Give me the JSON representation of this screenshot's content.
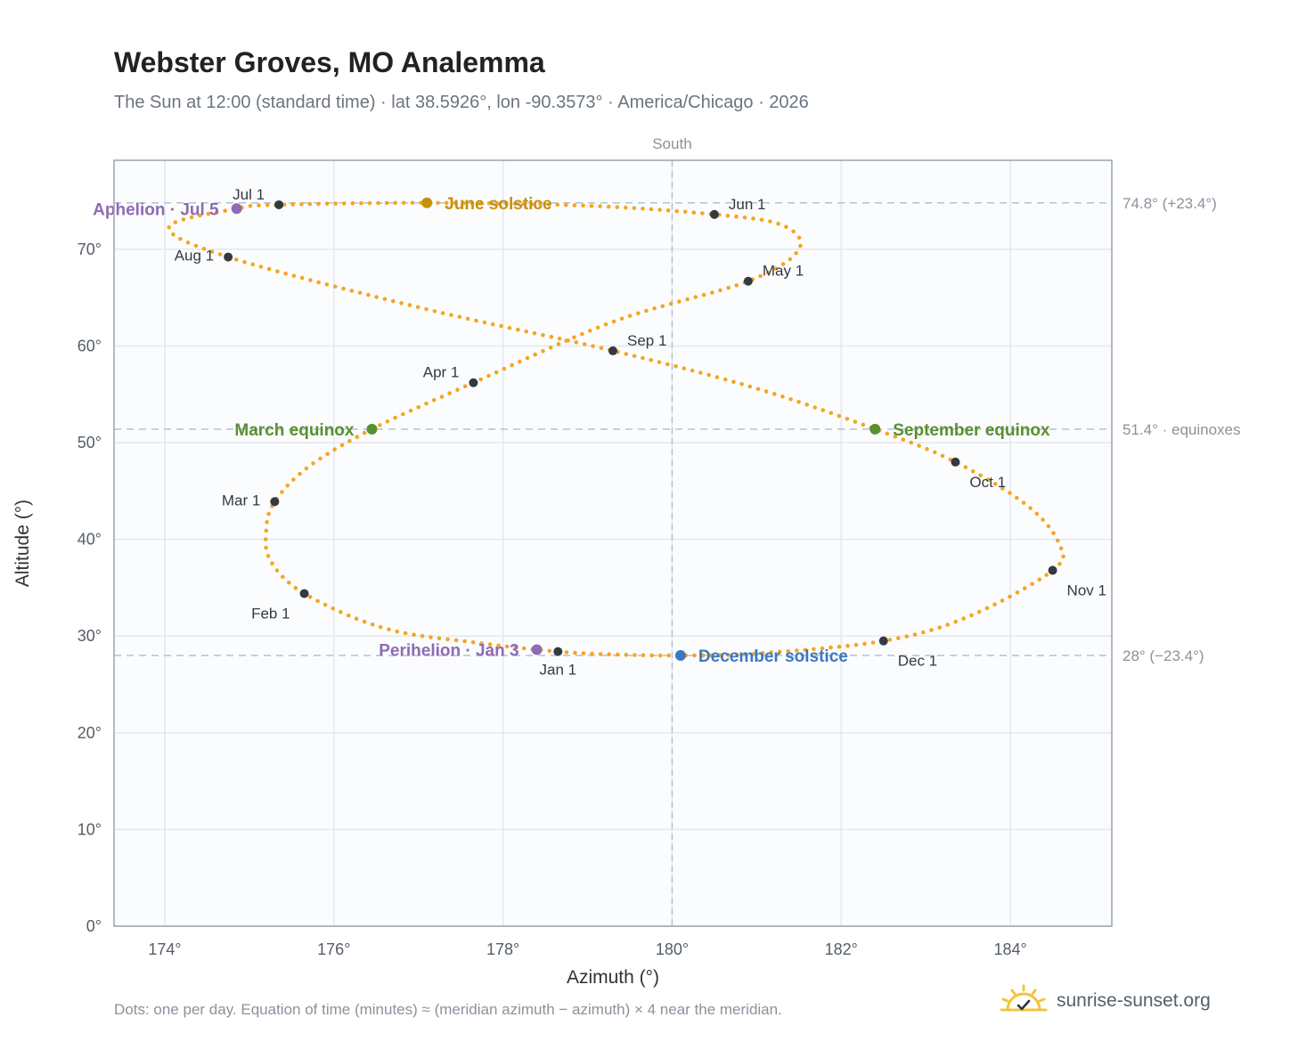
{
  "chart_data": {
    "type": "scatter",
    "title": "Webster Groves, MO Analemma",
    "subtitle": "The Sun at 12:00 (standard time) · lat 38.5926°, lon -90.3573° · America/Chicago · 2026",
    "xlabel": "Azimuth (°)",
    "ylabel": "Altitude (°)",
    "xlim": [
      173.4,
      185.2
    ],
    "ylim": [
      0,
      79.2
    ],
    "xticks": [
      174,
      176,
      178,
      180,
      182,
      184
    ],
    "xtick_labels": [
      "174°",
      "176°",
      "178°",
      "180°",
      "182°",
      "184°"
    ],
    "yticks": [
      0,
      10,
      20,
      30,
      40,
      50,
      60,
      70
    ],
    "ytick_labels": [
      "0°",
      "10°",
      "20°",
      "30°",
      "40°",
      "50°",
      "60°",
      "70°"
    ],
    "grid": true,
    "south_label": "South",
    "meridian_azimuth": 180,
    "reference_lines": [
      {
        "y": 74.8,
        "label": "74.8° (+23.4°)"
      },
      {
        "y": 51.4,
        "label": "51.4° · equinoxes"
      },
      {
        "y": 28,
        "label": "28° (−23.4°)"
      }
    ],
    "curve_anchors": [
      {
        "x": 178.65,
        "y": 28.4
      },
      {
        "x": 177.7,
        "y": 29.3
      },
      {
        "x": 176.6,
        "y": 30.8
      },
      {
        "x": 175.65,
        "y": 34.4
      },
      {
        "x": 175.25,
        "y": 37.8
      },
      {
        "x": 175.2,
        "y": 41.0
      },
      {
        "x": 175.3,
        "y": 43.9
      },
      {
        "x": 175.7,
        "y": 47.5
      },
      {
        "x": 176.45,
        "y": 51.4
      },
      {
        "x": 177.65,
        "y": 56.2
      },
      {
        "x": 179.3,
        "y": 62.5
      },
      {
        "x": 180.9,
        "y": 66.7
      },
      {
        "x": 181.5,
        "y": 70.0
      },
      {
        "x": 181.3,
        "y": 72.5
      },
      {
        "x": 180.5,
        "y": 73.6
      },
      {
        "x": 179.0,
        "y": 74.5
      },
      {
        "x": 177.1,
        "y": 74.8
      },
      {
        "x": 175.35,
        "y": 74.6
      },
      {
        "x": 174.85,
        "y": 74.2
      },
      {
        "x": 174.05,
        "y": 72.3
      },
      {
        "x": 174.75,
        "y": 69.2
      },
      {
        "x": 177.0,
        "y": 64.0
      },
      {
        "x": 179.3,
        "y": 59.5
      },
      {
        "x": 181.0,
        "y": 55.6
      },
      {
        "x": 182.4,
        "y": 51.4
      },
      {
        "x": 183.35,
        "y": 48.0
      },
      {
        "x": 184.2,
        "y": 43.5
      },
      {
        "x": 184.58,
        "y": 39.5
      },
      {
        "x": 184.5,
        "y": 36.8
      },
      {
        "x": 183.5,
        "y": 32.0
      },
      {
        "x": 182.5,
        "y": 29.5
      },
      {
        "x": 181.0,
        "y": 28.2
      },
      {
        "x": 180.1,
        "y": 28.0
      },
      {
        "x": 179.3,
        "y": 28.1
      },
      {
        "x": 178.65,
        "y": 28.4
      }
    ],
    "month_points": [
      {
        "label": "Jan 1",
        "x": 178.65,
        "y": 28.4,
        "pos": "below"
      },
      {
        "label": "Feb 1",
        "x": 175.65,
        "y": 34.4,
        "pos": "below-left"
      },
      {
        "label": "Mar 1",
        "x": 175.3,
        "y": 43.9,
        "pos": "left"
      },
      {
        "label": "Apr 1",
        "x": 177.65,
        "y": 56.2,
        "pos": "above-left"
      },
      {
        "label": "May 1",
        "x": 180.9,
        "y": 66.7,
        "pos": "right"
      },
      {
        "label": "Jun 1",
        "x": 180.5,
        "y": 73.6,
        "pos": "above-right"
      },
      {
        "label": "Jul 1",
        "x": 175.35,
        "y": 74.6,
        "pos": "above-left"
      },
      {
        "label": "Aug 1",
        "x": 174.75,
        "y": 69.2,
        "pos": "left"
      },
      {
        "label": "Sep 1",
        "x": 179.3,
        "y": 59.5,
        "pos": "above-right"
      },
      {
        "label": "Oct 1",
        "x": 183.35,
        "y": 48.0,
        "pos": "below-right"
      },
      {
        "label": "Nov 1",
        "x": 184.5,
        "y": 36.8,
        "pos": "below-right"
      },
      {
        "label": "Dec 1",
        "x": 182.5,
        "y": 29.5,
        "pos": "below-right"
      }
    ],
    "key_points": [
      {
        "label": "June solstice",
        "x": 177.1,
        "y": 74.8,
        "color": "#c8900a",
        "pos": "right"
      },
      {
        "label": "Aphelion · Jul 5",
        "x": 174.85,
        "y": 74.2,
        "color": "#8e6bb2",
        "pos": "left"
      },
      {
        "label": "March equinox",
        "x": 176.45,
        "y": 51.4,
        "color": "#5a8f30",
        "pos": "left"
      },
      {
        "label": "September equinox",
        "x": 182.4,
        "y": 51.4,
        "color": "#5a8f30",
        "pos": "right"
      },
      {
        "label": "Perihelion · Jan 3",
        "x": 178.4,
        "y": 28.6,
        "color": "#8e6bb2",
        "pos": "left"
      },
      {
        "label": "December solstice",
        "x": 180.1,
        "y": 28.0,
        "color": "#3b78c4",
        "pos": "right"
      }
    ],
    "colors": {
      "curve": "#f4a623",
      "month_dot": "#333a40",
      "grid": "#e4e8ee",
      "frame": "#9aa3ae",
      "reference": "#b5c2cf"
    }
  },
  "footnote": "Dots: one per day. Equation of time (minutes) ≈ (meridian azimuth − azimuth) × 4 near the meridian.",
  "brand": {
    "name": "sunrise-sunset.org",
    "logo_icon": "sun-logo-icon"
  }
}
